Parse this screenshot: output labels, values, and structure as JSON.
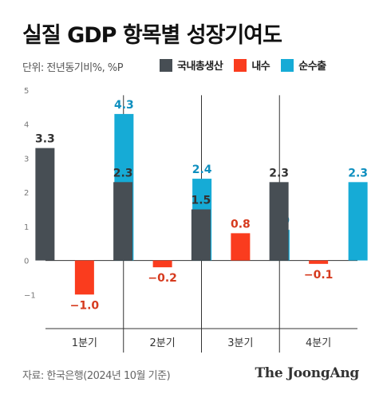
{
  "title": "실질 GDP 항목별 성장기여도",
  "unit_label": "단위: 전년동기비%, %P",
  "legend": [
    {
      "name": "국내총생산",
      "color": "#474e54"
    },
    {
      "name": "내수",
      "color": "#fa3c1e"
    },
    {
      "name": "순수출",
      "color": "#16abd6"
    }
  ],
  "source": "자료: 한국은행(2024년 10월 기준)",
  "brand": "The JoongAng",
  "chart_data": {
    "type": "bar",
    "categories": [
      "1분기",
      "2분기",
      "3분기",
      "4분기"
    ],
    "series": [
      {
        "name": "국내총생산",
        "values": [
          3.3,
          2.3,
          1.5,
          2.3
        ],
        "labels": [
          "3.3",
          "2.3",
          "1.5",
          "2.3"
        ]
      },
      {
        "name": "내수",
        "values": [
          -1.0,
          -0.2,
          0.8,
          -0.1
        ],
        "labels": [
          "−1.0",
          "−0.2",
          "0.8",
          "−0.1"
        ]
      },
      {
        "name": "순수출",
        "values": [
          4.3,
          2.4,
          0.9,
          2.3
        ],
        "labels": [
          "4.3",
          "2.4",
          "0.9",
          "2.3"
        ]
      }
    ],
    "ylim": [
      -2,
      5
    ],
    "yticks": [
      5,
      4,
      3,
      2,
      1,
      0,
      -1
    ],
    "ytick_labels": [
      "5",
      "4",
      "3",
      "2",
      "1",
      "0",
      "−1"
    ],
    "label_colors": [
      "#333333",
      "#d63a1e",
      "#0e8fbf"
    ]
  }
}
